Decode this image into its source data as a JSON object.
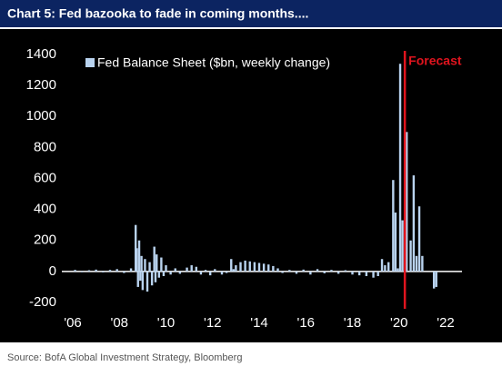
{
  "chart_data": {
    "type": "bar",
    "title": "Chart 5: Fed bazooka to fade in coming months....",
    "source": "Source: BofA Global Investment Strategy, Bloomberg",
    "annotation": {
      "text": "Forecast",
      "x": 2020.25,
      "color": "#e0141e"
    },
    "x": [
      2006.1,
      2006.4,
      2006.7,
      2007.0,
      2007.3,
      2007.6,
      2007.9,
      2008.2,
      2008.5,
      2008.7,
      2008.75,
      2008.8,
      2008.85,
      2008.9,
      2008.95,
      2009.0,
      2009.1,
      2009.2,
      2009.3,
      2009.4,
      2009.5,
      2009.55,
      2009.6,
      2009.7,
      2009.8,
      2009.9,
      2010.0,
      2010.2,
      2010.4,
      2010.6,
      2010.9,
      2011.1,
      2011.3,
      2011.5,
      2011.7,
      2011.9,
      2012.1,
      2012.4,
      2012.6,
      2012.8,
      2012.9,
      2013.0,
      2013.2,
      2013.4,
      2013.6,
      2013.8,
      2014.0,
      2014.2,
      2014.4,
      2014.6,
      2014.8,
      2015.0,
      2015.3,
      2015.6,
      2015.9,
      2016.2,
      2016.5,
      2016.8,
      2017.1,
      2017.4,
      2017.7,
      2018.0,
      2018.3,
      2018.6,
      2018.9,
      2019.1,
      2019.27,
      2019.4,
      2019.55,
      2019.75,
      2019.85,
      2019.95,
      2020.05,
      2020.15,
      2020.33,
      2020.5,
      2020.63,
      2020.75,
      2020.87,
      2021.0,
      2021.5,
      2021.6
    ],
    "series": [
      {
        "name": "Fed Balance Sheet ($bn, weekly change)",
        "color": "#b9d3ef",
        "values": [
          10,
          -5,
          8,
          12,
          -6,
          10,
          15,
          -10,
          20,
          300,
          150,
          -100,
          200,
          -60,
          100,
          -120,
          80,
          -130,
          60,
          -90,
          160,
          -70,
          110,
          -40,
          90,
          -30,
          40,
          -20,
          20,
          -15,
          25,
          40,
          30,
          -20,
          10,
          -25,
          15,
          -20,
          -10,
          80,
          15,
          40,
          60,
          70,
          65,
          60,
          55,
          50,
          45,
          35,
          20,
          -10,
          10,
          -15,
          12,
          -20,
          15,
          -12,
          10,
          -15,
          8,
          -20,
          -25,
          -30,
          -40,
          -30,
          80,
          40,
          60,
          590,
          380,
          20,
          1340,
          330,
          900,
          200,
          620,
          100,
          420,
          100,
          -110,
          -100
        ]
      }
    ],
    "xlim": [
      2006,
      2022
    ],
    "xticks": [
      {
        "value": 2006,
        "label": "'06"
      },
      {
        "value": 2008,
        "label": "'08"
      },
      {
        "value": 2010,
        "label": "'10"
      },
      {
        "value": 2012,
        "label": "'12"
      },
      {
        "value": 2014,
        "label": "'14"
      },
      {
        "value": 2016,
        "label": "'16"
      },
      {
        "value": 2018,
        "label": "'18"
      },
      {
        "value": 2020,
        "label": "'20"
      },
      {
        "value": 2022,
        "label": "'22"
      }
    ],
    "ylim": [
      -200,
      1400
    ],
    "yticks": [
      -200,
      0,
      200,
      400,
      600,
      800,
      1000,
      1200,
      1400
    ],
    "legend": "top-left"
  }
}
